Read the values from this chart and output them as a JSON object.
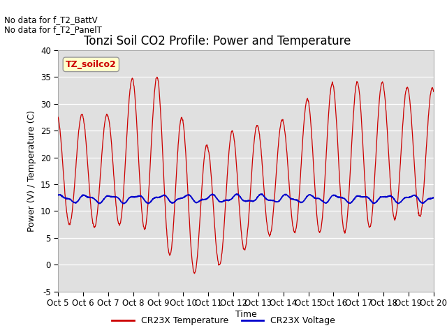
{
  "title": "Tonzi Soil CO2 Profile: Power and Temperature",
  "ylabel": "Power (V) / Temperature (C)",
  "xlabel": "Time",
  "ylim": [
    -5,
    40
  ],
  "yticks": [
    -5,
    0,
    5,
    10,
    15,
    20,
    25,
    30,
    35,
    40
  ],
  "x_tick_labels": [
    "Oct 5",
    "Oct 6",
    "Oct 7",
    "Oct 8",
    "Oct 9",
    "Oct 10",
    "Oct 11",
    "Oct 12",
    "Oct 13",
    "Oct 14",
    "Oct 15",
    "Oct 16",
    "Oct 17",
    "Oct 18",
    "Oct 19",
    "Oct 20"
  ],
  "no_data_line1": "No data for f_T2_BattV",
  "no_data_line2": "No data for f_T2_PanelT",
  "legend_label_TZ": "TZ_soilco2",
  "legend_label_temp": "CR23X Temperature",
  "legend_label_volt": "CR23X Voltage",
  "temp_color": "#cc0000",
  "volt_color": "#0000cc",
  "background_color": "#ffffff",
  "plot_bg_color": "#e0e0e0",
  "grid_color": "#ffffff",
  "title_fontsize": 12,
  "label_fontsize": 9,
  "tick_fontsize": 8.5,
  "nodata_fontsize": 8.5
}
